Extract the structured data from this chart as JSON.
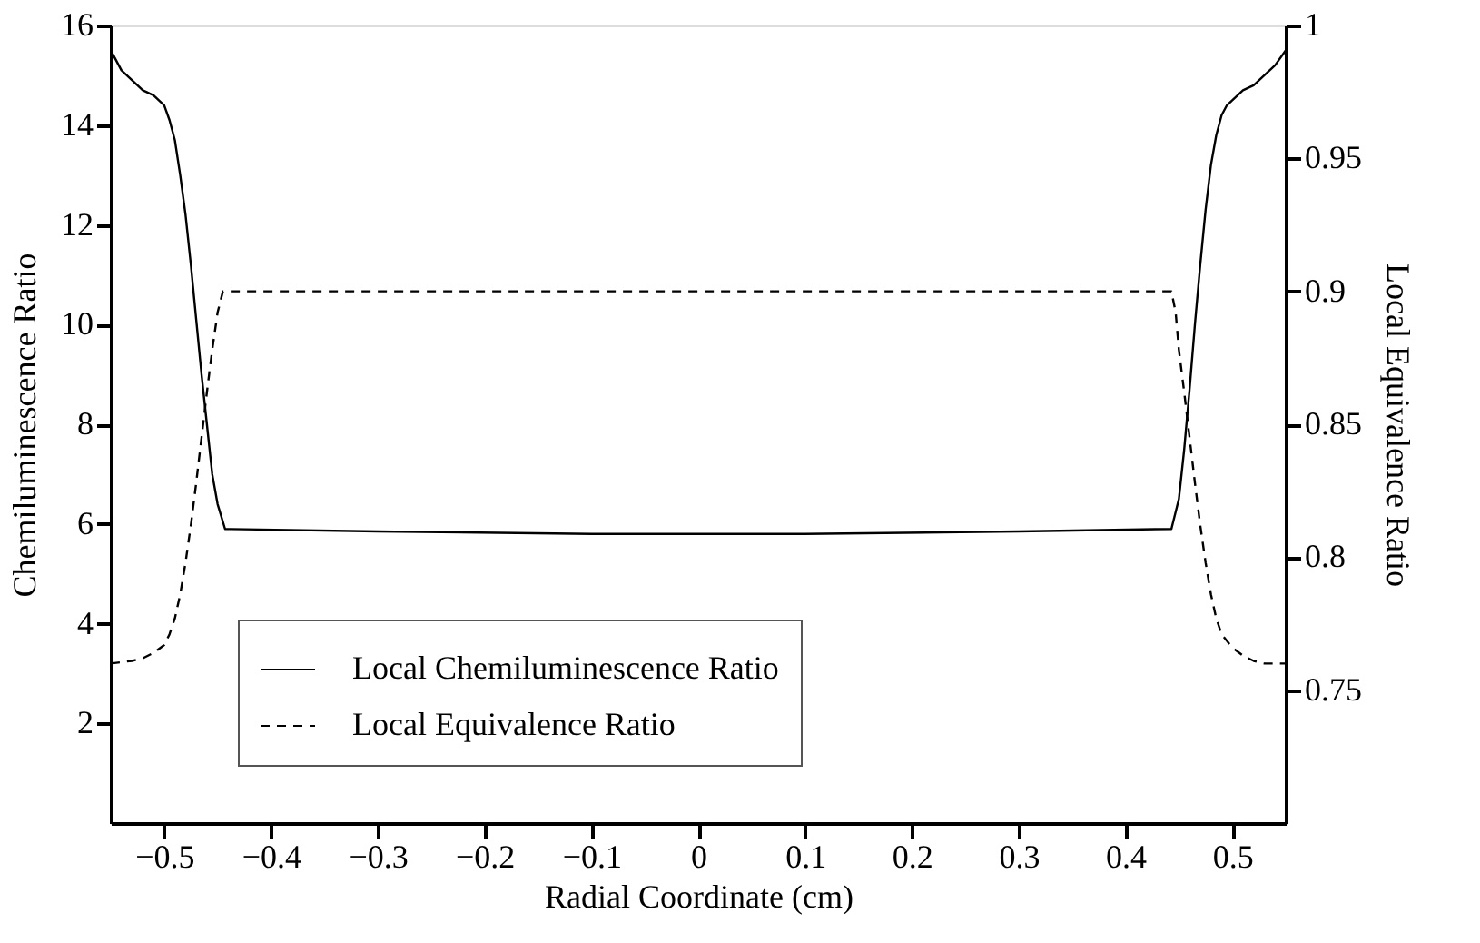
{
  "chart_data": {
    "type": "line",
    "xlabel": "Radial Coordinate (cm)",
    "ylabel": "Chemiluminescence Ratio",
    "y2label": "Local Equivalence Ratio",
    "xlim": [
      -0.55,
      0.55
    ],
    "xticks": [
      -0.5,
      -0.4,
      -0.3,
      -0.2,
      -0.1,
      0,
      0.1,
      0.2,
      0.3,
      0.4,
      0.5
    ],
    "ylim": [
      0,
      16
    ],
    "yticks": [
      2,
      4,
      6,
      8,
      10,
      12,
      14,
      16
    ],
    "y2lim": [
      0.7,
      1
    ],
    "y2ticks": [
      0.75,
      0.8,
      0.85,
      0.9,
      0.95,
      1
    ],
    "grid": false,
    "legend": "bottom",
    "marker": "none",
    "series": [
      {
        "name": "Local Chemiluminescence Ratio",
        "color": "#000000",
        "line_style": "solid",
        "x": [
          -0.55,
          -0.54,
          -0.53,
          -0.52,
          -0.51,
          -0.5,
          -0.495,
          -0.49,
          -0.485,
          -0.48,
          -0.475,
          -0.47,
          -0.465,
          -0.46,
          -0.455,
          -0.45,
          -0.443,
          -0.3,
          -0.1,
          0,
          0.1,
          0.3,
          0.443,
          0.45,
          0.455,
          0.46,
          0.465,
          0.47,
          0.475,
          0.48,
          0.485,
          0.49,
          0.495,
          0.5,
          0.51,
          0.52,
          0.53,
          0.54,
          0.55
        ],
        "values": [
          15.5,
          15.1,
          14.9,
          14.7,
          14.6,
          14.4,
          14.1,
          13.7,
          13.0,
          12.2,
          11.2,
          10.1,
          9.0,
          8.0,
          7.0,
          6.4,
          5.9,
          5.85,
          5.8,
          5.8,
          5.8,
          5.85,
          5.9,
          6.5,
          7.5,
          8.7,
          10.0,
          11.2,
          12.3,
          13.2,
          13.8,
          14.2,
          14.4,
          14.5,
          14.7,
          14.8,
          15.0,
          15.2,
          15.5
        ]
      },
      {
        "name": "Local Equivalence Ratio",
        "color": "#000000",
        "line_style": "dashed",
        "axis": "y2",
        "x": [
          -0.55,
          -0.53,
          -0.52,
          -0.51,
          -0.5,
          -0.495,
          -0.49,
          -0.485,
          -0.48,
          -0.475,
          -0.47,
          -0.465,
          -0.46,
          -0.455,
          -0.45,
          -0.445,
          -0.3,
          0,
          0.3,
          0.443,
          0.447,
          0.45,
          0.455,
          0.46,
          0.465,
          0.47,
          0.475,
          0.48,
          0.485,
          0.49,
          0.5,
          0.51,
          0.52,
          0.53,
          0.55
        ],
        "values": [
          0.76,
          0.761,
          0.762,
          0.764,
          0.767,
          0.771,
          0.777,
          0.786,
          0.798,
          0.812,
          0.828,
          0.845,
          0.862,
          0.878,
          0.892,
          0.9,
          0.9,
          0.9,
          0.9,
          0.9,
          0.892,
          0.878,
          0.862,
          0.845,
          0.828,
          0.812,
          0.798,
          0.786,
          0.777,
          0.771,
          0.766,
          0.763,
          0.761,
          0.76,
          0.76
        ]
      }
    ]
  }
}
